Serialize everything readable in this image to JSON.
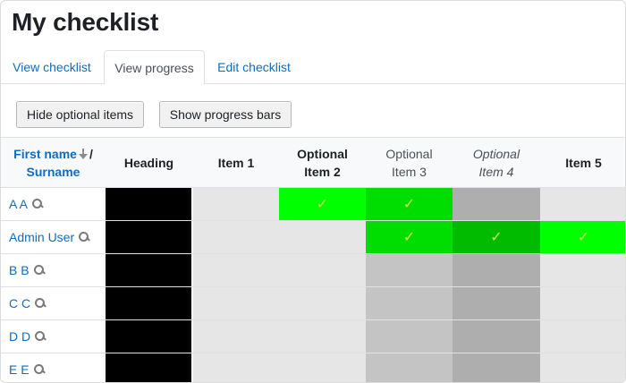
{
  "page": {
    "title": "My checklist"
  },
  "tabs": [
    {
      "label": "View checklist",
      "active": false
    },
    {
      "label": "View progress",
      "active": true
    },
    {
      "label": "Edit checklist",
      "active": false
    }
  ],
  "buttons": {
    "hide_optional": "Hide optional items",
    "show_progress": "Show progress bars"
  },
  "table": {
    "name_header": {
      "first": "First name",
      "separator": "/",
      "surname": "Surname"
    },
    "columns": [
      {
        "label_lines": [
          "Heading"
        ],
        "style": "bold"
      },
      {
        "label_lines": [
          "Item 1"
        ],
        "style": "bold"
      },
      {
        "label_lines": [
          "Optional",
          "Item 2"
        ],
        "style": "bold"
      },
      {
        "label_lines": [
          "Optional",
          "Item 3"
        ],
        "style": "normal"
      },
      {
        "label_lines": [
          "Optional",
          "Item 4"
        ],
        "style": "italic"
      },
      {
        "label_lines": [
          "Item 5"
        ],
        "style": "bold"
      }
    ],
    "rows": [
      {
        "name": "A A",
        "cells": [
          "heading",
          "empty",
          "checked-bright",
          "checked-mid",
          "unchecked-dark",
          "empty"
        ]
      },
      {
        "name": "Admin User",
        "cells": [
          "heading",
          "empty",
          "empty",
          "checked-mid",
          "checked-dark",
          "checked-bright"
        ]
      },
      {
        "name": "B B",
        "cells": [
          "heading",
          "empty",
          "empty",
          "unchecked-light",
          "unchecked-dark",
          "empty"
        ]
      },
      {
        "name": "C C",
        "cells": [
          "heading",
          "empty",
          "empty",
          "unchecked-light",
          "unchecked-dark",
          "empty"
        ]
      },
      {
        "name": "D D",
        "cells": [
          "heading",
          "empty",
          "empty",
          "unchecked-light",
          "unchecked-dark",
          "empty"
        ]
      },
      {
        "name": "E E",
        "cells": [
          "heading",
          "empty",
          "empty",
          "unchecked-light",
          "unchecked-dark",
          "empty"
        ]
      }
    ],
    "cell_colors": {
      "heading": "#000000",
      "empty": "#e6e6e6",
      "unchecked-light": "#c4c4c4",
      "unchecked-dark": "#aeaeae",
      "checked-bright": "#00ff00",
      "checked-mid": "#00dd00",
      "checked-dark": "#00bb00"
    },
    "check_icon": "check-icon"
  }
}
